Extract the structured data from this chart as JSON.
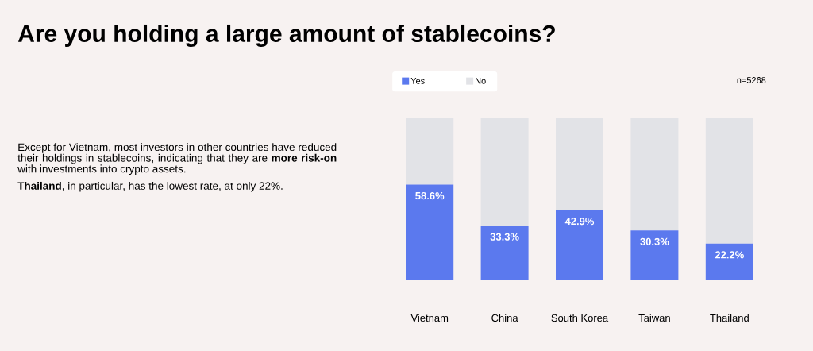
{
  "chart_data": {
    "type": "bar",
    "title": "Are you holding a large amount of stablecoins?",
    "annotations": [
      "Except for Vietnam, most investors in other countries have reduced their holdings in stablecoins, indicating that they are **more risk-on** with investments into crypto assets.",
      "**Thailand**, in particular, has the lowest rate, at only 22%.",
      "n=5268"
    ],
    "categories": [
      "Vietnam",
      "China",
      "South Korea",
      "Taiwan",
      "Thailand"
    ],
    "series": [
      {
        "name": "Yes",
        "color": "#5b79ee",
        "values": [
          58.6,
          33.3,
          42.9,
          30.3,
          22.2
        ],
        "value_labels": [
          "58.6%",
          "33.3%",
          "42.9%",
          "30.3%",
          "22.2%"
        ]
      },
      {
        "name": "No",
        "color": "#e2e3e7",
        "values": [
          41.4,
          66.7,
          57.1,
          69.7,
          77.8
        ]
      }
    ],
    "stacked": true,
    "ylim": [
      0,
      100
    ],
    "legend": "top left"
  }
}
